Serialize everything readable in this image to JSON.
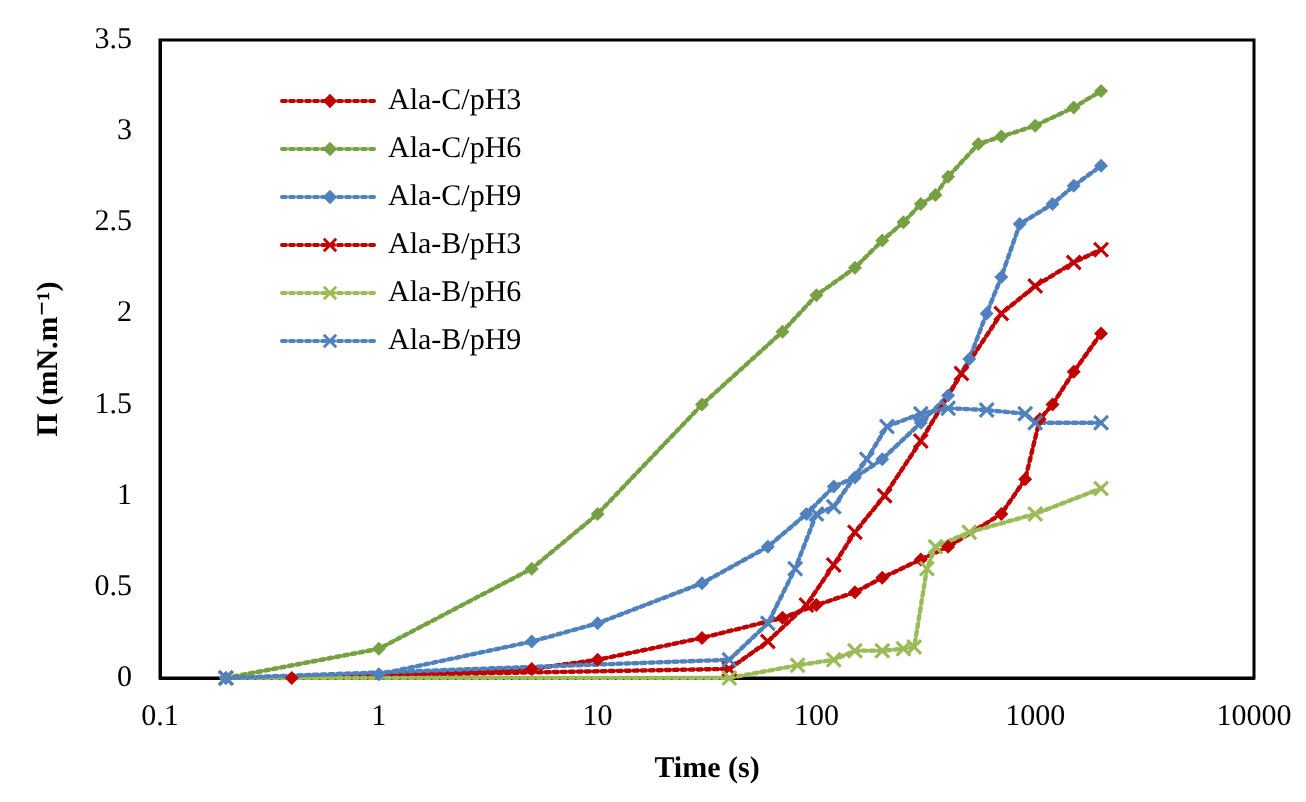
{
  "chart_data": {
    "type": "line",
    "xlabel": "Time (s)",
    "ylabel": "Π (mN.m⁻¹)",
    "log": "x",
    "xlim": [
      0.1,
      10000
    ],
    "xticks": [
      0.1,
      1,
      10,
      100,
      1000,
      10000
    ],
    "ylim": [
      0,
      3.5
    ],
    "yticks": [
      0,
      0.5,
      1,
      1.5,
      2,
      2.5,
      3,
      3.5
    ],
    "grid": false,
    "legend": "top left",
    "line_style": "dotted",
    "series": [
      {
        "name": "Ala-C/pH3",
        "color": "#c00000",
        "marker": "diamond",
        "x": [
          0.4,
          5,
          10,
          30,
          70,
          100,
          150,
          200,
          300,
          400,
          700,
          900,
          1050,
          1200,
          1500,
          2000
        ],
        "values": [
          0,
          0.05,
          0.1,
          0.22,
          0.33,
          0.4,
          0.47,
          0.55,
          0.65,
          0.72,
          0.9,
          1.09,
          1.42,
          1.5,
          1.68,
          1.89
        ]
      },
      {
        "name": "Ala-C/pH6",
        "color": "#77a043",
        "marker": "diamond",
        "x": [
          0.2,
          1,
          5,
          10,
          30,
          70,
          100,
          150,
          200,
          250,
          300,
          350,
          400,
          550,
          700,
          1000,
          1500,
          2000
        ],
        "values": [
          0,
          0.16,
          0.6,
          0.9,
          1.5,
          1.9,
          2.1,
          2.25,
          2.4,
          2.5,
          2.6,
          2.65,
          2.75,
          2.93,
          2.97,
          3.03,
          3.13,
          3.22
        ]
      },
      {
        "name": "Ala-C/pH9",
        "color": "#4f81bd",
        "marker": "diamond",
        "x": [
          0.2,
          1,
          5,
          10,
          30,
          60,
          90,
          120,
          150,
          200,
          300,
          400,
          500,
          600,
          700,
          850,
          1200,
          1500,
          2000
        ],
        "values": [
          0,
          0.02,
          0.2,
          0.3,
          0.52,
          0.72,
          0.9,
          1.05,
          1.1,
          1.2,
          1.4,
          1.55,
          1.75,
          2.0,
          2.2,
          2.49,
          2.6,
          2.7,
          2.81
        ]
      },
      {
        "name": "Ala-B/pH3",
        "color": "#c00000",
        "marker": "cross",
        "x": [
          0.2,
          40,
          60,
          90,
          120,
          150,
          205,
          300,
          460,
          700,
          1000,
          1500,
          2000
        ],
        "values": [
          0,
          0.05,
          0.2,
          0.4,
          0.62,
          0.8,
          1.0,
          1.3,
          1.67,
          2.0,
          2.15,
          2.28,
          2.35
        ]
      },
      {
        "name": "Ala-B/pH6",
        "color": "#9bbb59",
        "marker": "cross",
        "x": [
          0.2,
          40,
          82,
          120,
          150,
          200,
          250,
          280,
          320,
          350,
          500,
          1000,
          2000
        ],
        "values": [
          0,
          0,
          0.07,
          0.1,
          0.15,
          0.15,
          0.16,
          0.17,
          0.6,
          0.72,
          0.8,
          0.9,
          1.04
        ]
      },
      {
        "name": "Ala-B/pH9",
        "color": "#4f81bd",
        "marker": "cross",
        "x": [
          0.2,
          40,
          60,
          80,
          100,
          120,
          170,
          210,
          300,
          400,
          600,
          900,
          1000,
          2000
        ],
        "values": [
          0,
          0.1,
          0.3,
          0.6,
          0.9,
          0.94,
          1.2,
          1.38,
          1.45,
          1.48,
          1.47,
          1.45,
          1.4,
          1.4
        ]
      }
    ]
  }
}
